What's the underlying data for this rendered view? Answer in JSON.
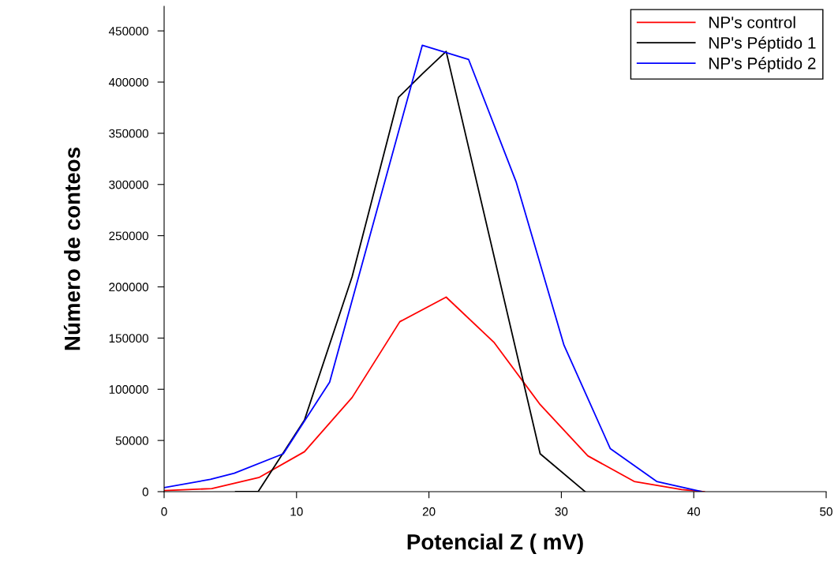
{
  "chart_data": {
    "type": "line",
    "xlabel": "Potencial Z ( mV)",
    "ylabel": "Número de conteos",
    "xlim": [
      0,
      50
    ],
    "xticks": [
      0,
      10,
      20,
      30,
      40,
      50
    ],
    "ylim": [
      0,
      474000
    ],
    "yticks": [
      0,
      50000,
      100000,
      150000,
      200000,
      250000,
      300000,
      350000,
      400000,
      450000
    ],
    "grid": false,
    "legend": "top right",
    "marker": "none",
    "line_style": "solid",
    "series": [
      {
        "name": "NP's control",
        "color": "#ff0000",
        "x": [
          0,
          3.6,
          7.2,
          10.6,
          14.2,
          17.8,
          21.3,
          24.9,
          28.4,
          32.0,
          35.5,
          39.1,
          40.8
        ],
        "values": [
          1000,
          3000,
          14000,
          39000,
          92000,
          166000,
          190000,
          146000,
          85000,
          35000,
          10000,
          2000,
          0
        ]
      },
      {
        "name": "NP's Péptido 1",
        "color": "#000000",
        "x": [
          5.4,
          7.1,
          10.6,
          14.2,
          17.7,
          19.5,
          21.3,
          28.4,
          31.8
        ],
        "values": [
          0,
          0,
          70000,
          210000,
          385000,
          408000,
          430000,
          37000,
          0
        ]
      },
      {
        "name": "NP's Péptido 2",
        "color": "#0000ff",
        "x": [
          0,
          3.5,
          5.3,
          9.0,
          12.5,
          19.5,
          23.0,
          26.6,
          30.2,
          33.7,
          37.2,
          40.6
        ],
        "values": [
          4000,
          12000,
          18000,
          37000,
          107000,
          436000,
          422000,
          302000,
          143000,
          42000,
          10000,
          0
        ]
      }
    ]
  }
}
